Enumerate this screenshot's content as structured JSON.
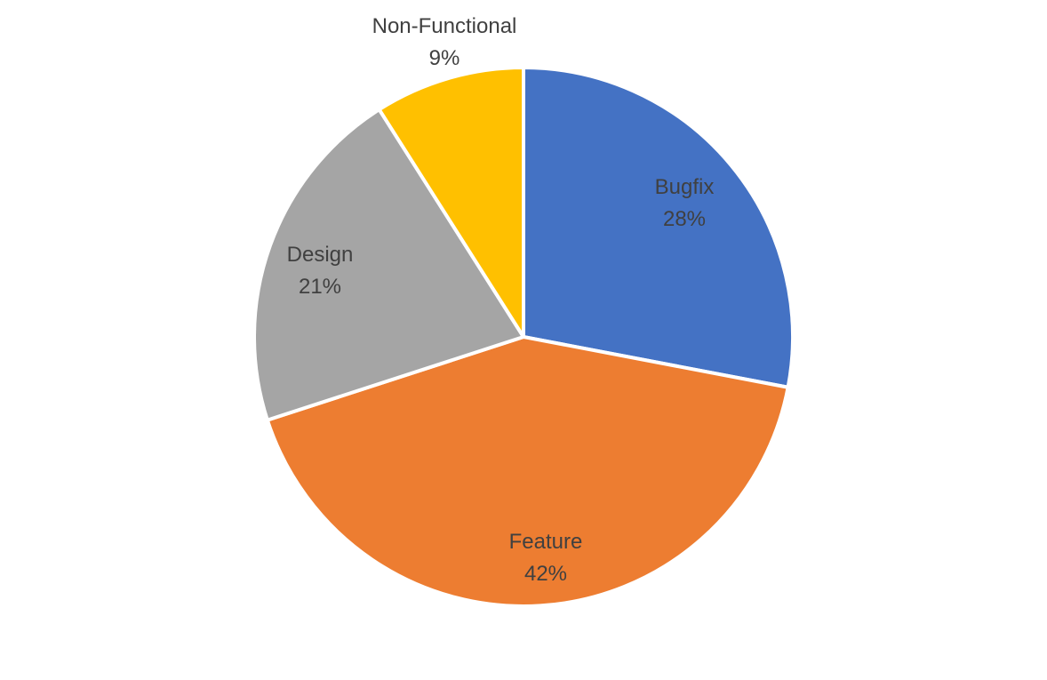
{
  "chart_data": {
    "type": "pie",
    "start_angle_deg": 0,
    "direction": "clockwise",
    "slices": [
      {
        "label": "Bugfix",
        "value": 28,
        "percent_label": "28%",
        "color": "#4472C4"
      },
      {
        "label": "Feature",
        "value": 42,
        "percent_label": "42%",
        "color": "#ED7D31"
      },
      {
        "label": "Design",
        "value": 21,
        "percent_label": "21%",
        "color": "#A5A5A5"
      },
      {
        "label": "Non-Functional",
        "value": 9,
        "percent_label": "9%",
        "color": "#FFC000"
      }
    ],
    "slice_border_color": "#FFFFFF",
    "label_color": "#404040",
    "legend": "none"
  }
}
